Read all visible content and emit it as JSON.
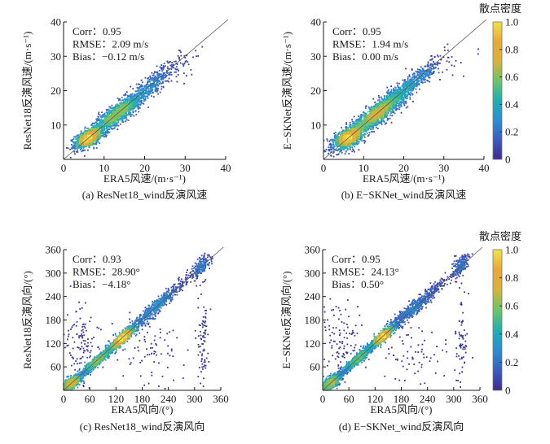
{
  "chart_data": [
    {
      "id": "a",
      "type": "scatter",
      "density_colored": true,
      "caption": "(a) ResNet18_wind反演风速",
      "xlabel": "ERA5风速/(m·s⁻¹)",
      "ylabel": "ResNet18反演风速/(m·s⁻¹)",
      "xlim": [
        0,
        40
      ],
      "ylim": [
        0,
        40
      ],
      "xticks": [
        0,
        10,
        20,
        30,
        40
      ],
      "yticks": [
        10,
        20,
        30,
        40
      ],
      "xtick_labels": [
        "0",
        "10",
        "20",
        "30",
        "40"
      ],
      "ytick_labels": [
        "10",
        "20",
        "30",
        "40"
      ],
      "reference_line": "y=x",
      "stats": [
        "Corr：0.95",
        "RMSE：2.09 m/s",
        "Bias：−0.12 m/s"
      ],
      "clusters": [
        {
          "cx": 6,
          "cy": 6,
          "sx": 1.6,
          "sy": 1.4,
          "rho": 0.5,
          "n": 900
        },
        {
          "cx": 13,
          "cy": 13,
          "sx": 3.8,
          "sy": 3.6,
          "rho": 0.9,
          "n": 1500
        },
        {
          "cx": 22,
          "cy": 22,
          "sx": 3.5,
          "sy": 3.5,
          "rho": 0.88,
          "n": 350
        },
        {
          "cx": 28,
          "cy": 26,
          "sx": 3.0,
          "sy": 2.5,
          "rho": 0.5,
          "n": 40
        }
      ],
      "colorbar": false
    },
    {
      "id": "b",
      "type": "scatter",
      "density_colored": true,
      "caption": "(b) E−SKNet_wind反演风速",
      "xlabel": "ERA5风速/(m·s⁻¹)",
      "ylabel": "E−SKNet反演风速/(m·s⁻¹)",
      "xlim": [
        0,
        40
      ],
      "ylim": [
        0,
        40
      ],
      "xticks": [
        0,
        10,
        20,
        30,
        40
      ],
      "yticks": [
        10,
        20,
        30,
        40
      ],
      "xtick_labels": [
        "0",
        "10",
        "20",
        "30",
        "40"
      ],
      "ytick_labels": [
        "10",
        "20",
        "30",
        "40"
      ],
      "reference_line": "y=x",
      "stats": [
        "Corr：0.95",
        "RMSE：1.94 m/s",
        "Bias：0.00 m/s"
      ],
      "clusters": [
        {
          "cx": 6,
          "cy": 6,
          "sx": 1.7,
          "sy": 1.5,
          "rho": 0.5,
          "n": 1000
        },
        {
          "cx": 13,
          "cy": 13,
          "sx": 4.0,
          "sy": 3.8,
          "rho": 0.9,
          "n": 1900
        },
        {
          "cx": 22,
          "cy": 22,
          "sx": 3.5,
          "sy": 3.5,
          "rho": 0.9,
          "n": 500
        },
        {
          "cx": 29,
          "cy": 27,
          "sx": 3.0,
          "sy": 2.5,
          "rho": 0.5,
          "n": 40
        }
      ],
      "colorbar": true
    },
    {
      "id": "c",
      "type": "scatter",
      "density_colored": true,
      "caption": "(c) ResNet18_wind反演风向",
      "xlabel": "ERA5风向/(°)",
      "ylabel": "ResNet18反演风向/(°)",
      "xlim": [
        0,
        360
      ],
      "ylim": [
        0,
        360
      ],
      "xticks": [
        0,
        60,
        120,
        180,
        240,
        300,
        360
      ],
      "yticks": [
        60,
        120,
        180,
        240,
        300,
        360
      ],
      "xtick_labels": [
        "0",
        "60",
        "120",
        "180",
        "240",
        "300",
        "360"
      ],
      "ytick_labels": [
        "60",
        "120",
        "180",
        "240",
        "300",
        "360"
      ],
      "reference_line": "y=x",
      "stats": [
        "Corr：0.93",
        "RMSE：28.90°",
        "Bias：−4.18°"
      ],
      "clusters": [
        {
          "cx": 20,
          "cy": 20,
          "sx": 10,
          "sy": 10,
          "rho": 0.7,
          "n": 700
        },
        {
          "cx": 80,
          "cy": 78,
          "sx": 20,
          "sy": 20,
          "rho": 0.95,
          "n": 900
        },
        {
          "cx": 135,
          "cy": 133,
          "sx": 14,
          "sy": 14,
          "rho": 0.9,
          "n": 1200
        },
        {
          "cx": 210,
          "cy": 212,
          "sx": 38,
          "sy": 38,
          "rho": 0.97,
          "n": 700
        },
        {
          "cx": 315,
          "cy": 318,
          "sx": 10,
          "sy": 14,
          "rho": 0.6,
          "n": 200
        },
        {
          "cx": 320,
          "cy": 130,
          "sx": 6,
          "sy": 70,
          "rho": 0,
          "n": 80
        },
        {
          "cx": 40,
          "cy": 120,
          "sx": 18,
          "sy": 50,
          "rho": 0,
          "n": 120
        },
        {
          "cx": 200,
          "cy": 100,
          "sx": 50,
          "sy": 50,
          "rho": 0,
          "n": 90
        }
      ],
      "colorbar": false
    },
    {
      "id": "d",
      "type": "scatter",
      "density_colored": true,
      "caption": "(d) E−SKNet_wind反演风向",
      "xlabel": "ERA5风向/(°)",
      "ylabel": "E−SKNet反演风向/(°)",
      "xlim": [
        0,
        360
      ],
      "ylim": [
        0,
        360
      ],
      "xticks": [
        0,
        60,
        120,
        180,
        240,
        300,
        360
      ],
      "yticks": [
        60,
        120,
        180,
        240,
        300,
        360
      ],
      "xtick_labels": [
        "0",
        "60",
        "120",
        "180",
        "240",
        "300",
        "360"
      ],
      "ytick_labels": [
        "60",
        "120",
        "180",
        "240",
        "300",
        "360"
      ],
      "reference_line": "y=x",
      "stats": [
        "Corr：0.95",
        "RMSE：24.13°",
        "Bias：0.50°"
      ],
      "clusters": [
        {
          "cx": 20,
          "cy": 20,
          "sx": 11,
          "sy": 11,
          "rho": 0.7,
          "n": 800
        },
        {
          "cx": 80,
          "cy": 80,
          "sx": 20,
          "sy": 20,
          "rho": 0.95,
          "n": 1000
        },
        {
          "cx": 138,
          "cy": 138,
          "sx": 13,
          "sy": 13,
          "rho": 0.9,
          "n": 1300
        },
        {
          "cx": 210,
          "cy": 212,
          "sx": 38,
          "sy": 38,
          "rho": 0.97,
          "n": 700
        },
        {
          "cx": 315,
          "cy": 318,
          "sx": 10,
          "sy": 14,
          "rho": 0.6,
          "n": 200
        },
        {
          "cx": 318,
          "cy": 130,
          "sx": 6,
          "sy": 70,
          "rho": 0,
          "n": 70
        },
        {
          "cx": 40,
          "cy": 120,
          "sx": 18,
          "sy": 50,
          "rho": 0,
          "n": 110
        },
        {
          "cx": 200,
          "cy": 100,
          "sx": 50,
          "sy": 50,
          "rho": 0,
          "n": 80
        }
      ],
      "colorbar": true
    }
  ],
  "colorbar": {
    "title": "散点密度",
    "range": [
      0,
      1
    ],
    "ticks": [
      0,
      0.2,
      0.4,
      0.6,
      0.8,
      1.0
    ],
    "tick_labels": [
      "0",
      "0.2",
      "0.4",
      "0.6",
      "0.8",
      "1.0"
    ],
    "colormap": [
      "#3e2a8e",
      "#3a5cbd",
      "#2a8fd0",
      "#1fb0b0",
      "#6cc36a",
      "#d6b43a",
      "#e8a83a",
      "#f0e24a"
    ]
  },
  "colors": {
    "axis": "#1a1a1a",
    "reference_line": "#555555"
  }
}
